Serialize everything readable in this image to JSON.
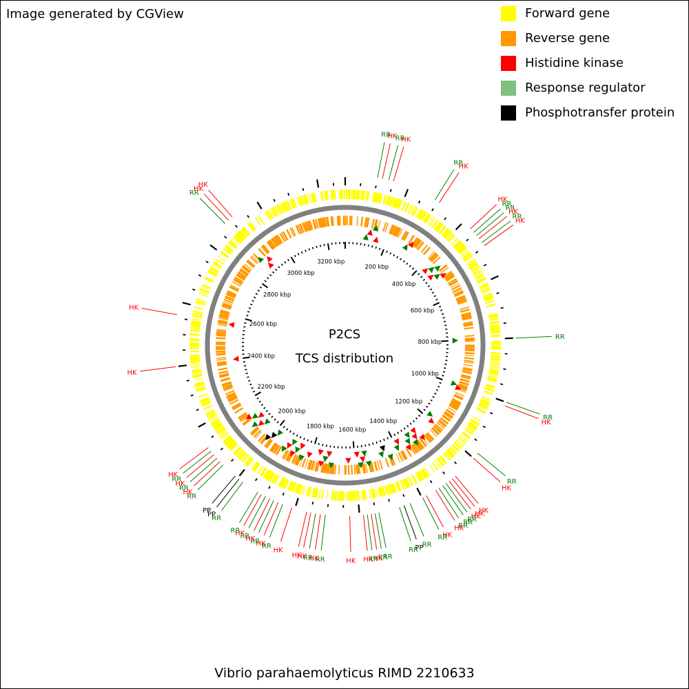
{
  "credit": "Image generated by CGView",
  "caption": "Vibrio parahaemolyticus RIMD 2210633",
  "center": {
    "line1": "P2CS",
    "line2": "TCS distribution"
  },
  "colors": {
    "forward": "#ffff00",
    "reverse": "#ff9900",
    "HK": "#ff0000",
    "RR": "#008000",
    "RR_legend": "#7fbf7f",
    "PP": "#000000",
    "backbone": "#808080"
  },
  "legend": [
    {
      "label": "Forward gene",
      "color": "#ffff00",
      "icon": "yellow-square"
    },
    {
      "label": "Reverse gene",
      "color": "#ff9900",
      "icon": "orange-square"
    },
    {
      "label": "Histidine kinase",
      "color": "#ff0000",
      "icon": "red-square"
    },
    {
      "label": "Response regulator",
      "color": "#7fbf7f",
      "icon": "green-square"
    },
    {
      "label": "Phosphotransfer protein",
      "color": "#000000",
      "icon": "black-square"
    }
  ],
  "genome": {
    "length_kbp": 3288
  },
  "scale_labels": [
    "200 kbp",
    "400 kbp",
    "600 kbp",
    "800 kbp",
    "1000 kbp",
    "1200 kbp",
    "1400 kbp",
    "1600 kbp",
    "1800 kbp",
    "2000 kbp",
    "2200 kbp",
    "2400 kbp",
    "2600 kbp",
    "2800 kbp",
    "3000 kbp",
    "3200 kbp"
  ],
  "features": [
    {
      "type": "RR",
      "pos_kbp": 100
    },
    {
      "type": "HK",
      "pos_kbp": 115
    },
    {
      "type": "RR",
      "pos_kbp": 135
    },
    {
      "type": "HK",
      "pos_kbp": 150
    },
    {
      "type": "RR",
      "pos_kbp": 290
    },
    {
      "type": "HK",
      "pos_kbp": 305
    },
    {
      "type": "HK",
      "pos_kbp": 430
    },
    {
      "type": "RR",
      "pos_kbp": 445
    },
    {
      "type": "RR",
      "pos_kbp": 458
    },
    {
      "type": "HK",
      "pos_kbp": 470
    },
    {
      "type": "RR",
      "pos_kbp": 485
    },
    {
      "type": "HK",
      "pos_kbp": 497
    },
    {
      "type": "RR",
      "pos_kbp": 800
    },
    {
      "type": "RR",
      "pos_kbp": 1000
    },
    {
      "type": "HK",
      "pos_kbp": 1012
    },
    {
      "type": "RR",
      "pos_kbp": 1180
    },
    {
      "type": "HK",
      "pos_kbp": 1200
    },
    {
      "type": "HK",
      "pos_kbp": 1278
    },
    {
      "type": "HK",
      "pos_kbp": 1290
    },
    {
      "type": "HK",
      "pos_kbp": 1302
    },
    {
      "type": "RR",
      "pos_kbp": 1314
    },
    {
      "type": "RR",
      "pos_kbp": 1326
    },
    {
      "type": "RR",
      "pos_kbp": 1340
    },
    {
      "type": "HK",
      "pos_kbp": 1352
    },
    {
      "type": "HK",
      "pos_kbp": 1385
    },
    {
      "type": "RR",
      "pos_kbp": 1398
    },
    {
      "type": "RR",
      "pos_kbp": 1440
    },
    {
      "type": "PP",
      "pos_kbp": 1460
    },
    {
      "type": "RR",
      "pos_kbp": 1475
    },
    {
      "type": "RR",
      "pos_kbp": 1540
    },
    {
      "type": "RR",
      "pos_kbp": 1552
    },
    {
      "type": "HK",
      "pos_kbp": 1564
    },
    {
      "type": "RR",
      "pos_kbp": 1576
    },
    {
      "type": "HK",
      "pos_kbp": 1588
    },
    {
      "type": "HK",
      "pos_kbp": 1630
    },
    {
      "type": "RR",
      "pos_kbp": 1705
    },
    {
      "type": "HK",
      "pos_kbp": 1720
    },
    {
      "type": "RR",
      "pos_kbp": 1735
    },
    {
      "type": "HK",
      "pos_kbp": 1750
    },
    {
      "type": "HK",
      "pos_kbp": 1763
    },
    {
      "type": "HK",
      "pos_kbp": 1810
    },
    {
      "type": "RR",
      "pos_kbp": 1840
    },
    {
      "type": "HK",
      "pos_kbp": 1855
    },
    {
      "type": "RR",
      "pos_kbp": 1870
    },
    {
      "type": "HK",
      "pos_kbp": 1883
    },
    {
      "type": "RR",
      "pos_kbp": 1898
    },
    {
      "type": "HK",
      "pos_kbp": 1912
    },
    {
      "type": "RR",
      "pos_kbp": 1925
    },
    {
      "type": "RR",
      "pos_kbp": 1980
    },
    {
      "type": "PP",
      "pos_kbp": 1995
    },
    {
      "type": "PP",
      "pos_kbp": 2010
    },
    {
      "type": "RR",
      "pos_kbp": 2060
    },
    {
      "type": "HK",
      "pos_kbp": 2074
    },
    {
      "type": "RR",
      "pos_kbp": 2088
    },
    {
      "type": "HK",
      "pos_kbp": 2102
    },
    {
      "type": "RR",
      "pos_kbp": 2116
    },
    {
      "type": "HK",
      "pos_kbp": 2130
    },
    {
      "type": "HK",
      "pos_kbp": 2400
    },
    {
      "type": "HK",
      "pos_kbp": 2560
    },
    {
      "type": "RR",
      "pos_kbp": 2880
    },
    {
      "type": "HK",
      "pos_kbp": 2895
    },
    {
      "type": "HK",
      "pos_kbp": 2910
    }
  ]
}
